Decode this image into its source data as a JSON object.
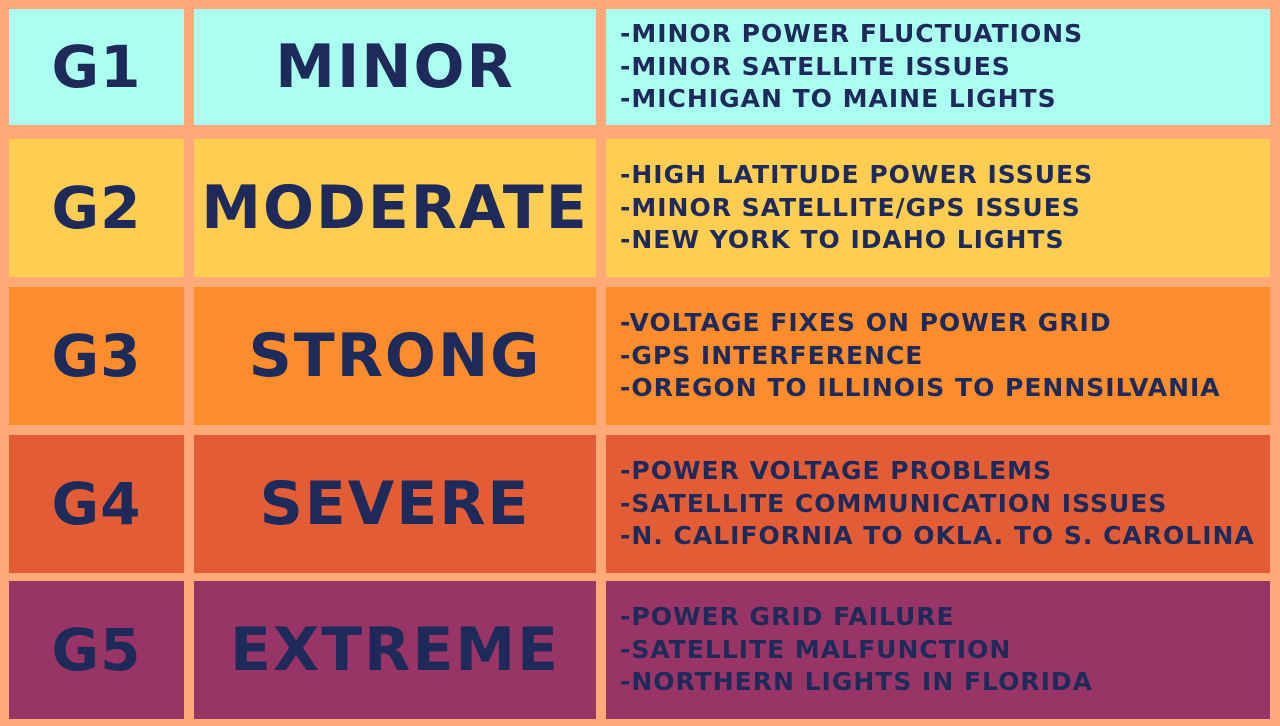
{
  "colors": {
    "background": "#ffa978",
    "text": "#1e2a5a",
    "g1": "#abfff1",
    "g2": "#ffcd52",
    "g3": "#fd8c2d",
    "g4": "#e25c36",
    "g5": "#993467"
  },
  "rows": [
    {
      "code": "G1",
      "name": "MINOR",
      "effects": [
        "-MINOR POWER FLUCTUATIONS",
        "-MINOR SATELLITE ISSUES",
        "-MICHIGAN TO MAINE LIGHTS"
      ]
    },
    {
      "code": "G2",
      "name": "MODERATE",
      "effects": [
        "-HIGH LATITUDE POWER ISSUES",
        "-MINOR SATELLITE/GPS ISSUES",
        "-NEW YORK TO IDAHO LIGHTS"
      ]
    },
    {
      "code": "G3",
      "name": "STRONG",
      "effects": [
        "-VOLTAGE FIXES ON POWER GRID",
        "-GPS INTERFERENCE",
        "-OREGON TO ILLINOIS TO PENNSILVANIA"
      ]
    },
    {
      "code": "G4",
      "name": "SEVERE",
      "effects": [
        "-POWER VOLTAGE PROBLEMS",
        "-SATELLITE COMMUNICATION ISSUES",
        "-N. CALIFORNIA TO OKLA. TO S. CAROLINA"
      ]
    },
    {
      "code": "G5",
      "name": "EXTREME",
      "effects": [
        "-POWER GRID FAILURE",
        "-SATELLITE MALFUNCTION",
        "-NORTHERN LIGHTS IN FLORIDA"
      ]
    }
  ]
}
